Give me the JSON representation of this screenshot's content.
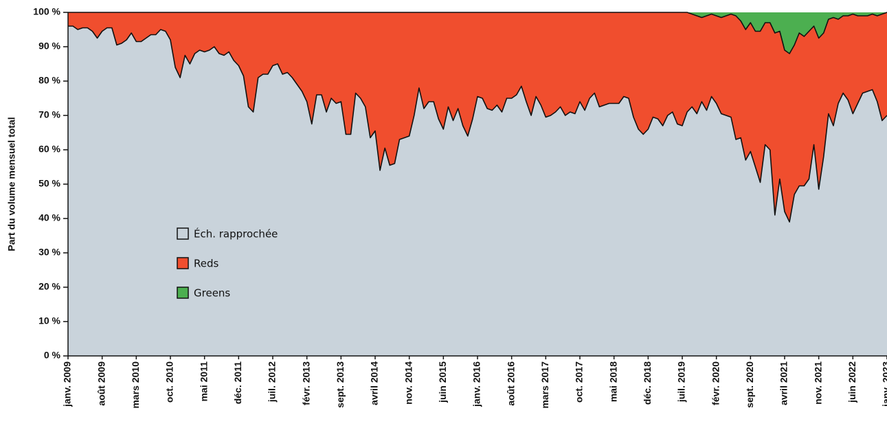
{
  "chart_data": {
    "type": "stacked_area",
    "ylabel": "Part du volume mensuel total",
    "categories": [
      "janv. 2009",
      null,
      null,
      null,
      null,
      null,
      null,
      "août 2009",
      null,
      null,
      null,
      null,
      null,
      null,
      "mars 2010",
      null,
      null,
      null,
      null,
      null,
      null,
      "oct. 2010",
      null,
      null,
      null,
      null,
      null,
      null,
      "mai 2011",
      null,
      null,
      null,
      null,
      null,
      null,
      "déc. 2011",
      null,
      null,
      null,
      null,
      null,
      null,
      "juil. 2012",
      null,
      null,
      null,
      null,
      null,
      null,
      "févr. 2013",
      null,
      null,
      null,
      null,
      null,
      null,
      "sept. 2013",
      null,
      null,
      null,
      null,
      null,
      null,
      "avril 2014",
      null,
      null,
      null,
      null,
      null,
      null,
      "nov. 2014",
      null,
      null,
      null,
      null,
      null,
      null,
      "juin 2015",
      null,
      null,
      null,
      null,
      null,
      null,
      "janv. 2016",
      null,
      null,
      null,
      null,
      null,
      null,
      "août 2016",
      null,
      null,
      null,
      null,
      null,
      null,
      "mars 2017",
      null,
      null,
      null,
      null,
      null,
      null,
      "oct. 2017",
      null,
      null,
      null,
      null,
      null,
      null,
      "mai 2018",
      null,
      null,
      null,
      null,
      null,
      null,
      "déc. 2018",
      null,
      null,
      null,
      null,
      null,
      null,
      "juil. 2019",
      null,
      null,
      null,
      null,
      null,
      null,
      "févr. 2020",
      null,
      null,
      null,
      null,
      null,
      null,
      "sept. 2020",
      null,
      null,
      null,
      null,
      null,
      null,
      "avril 2021",
      null,
      null,
      null,
      null,
      null,
      null,
      "nov. 2021",
      null,
      null,
      null,
      null,
      null,
      null,
      "juin 2022",
      null,
      null,
      null,
      null,
      null,
      null,
      "janv. 2023"
    ],
    "series": [
      {
        "name": "Éch. rapprochée",
        "color": "#c9d3db",
        "values": [
          96,
          96,
          95,
          95.5,
          95.5,
          94.5,
          92.5,
          94.5,
          95.5,
          95.5,
          90.5,
          91,
          92,
          94,
          91.5,
          91.5,
          92.5,
          93.5,
          93.5,
          95,
          94.5,
          92,
          84,
          81,
          87.5,
          85,
          88,
          89,
          88.5,
          89,
          90,
          88,
          87.5,
          88.5,
          86,
          84.5,
          81.5,
          72.5,
          71,
          81,
          82,
          82,
          84.5,
          85,
          82,
          82.5,
          81,
          79,
          77,
          74,
          67.5,
          76,
          76,
          71,
          75,
          73.5,
          74,
          64.5,
          64.5,
          76.5,
          75,
          72.5,
          63.5,
          65.5,
          54,
          60.5,
          55.5,
          56,
          63,
          63.5,
          64,
          70,
          78,
          72,
          74,
          74,
          69,
          66,
          72.5,
          68.5,
          72,
          67,
          64,
          69,
          75.5,
          75,
          72,
          71.5,
          73,
          71,
          75,
          75,
          76,
          78.5,
          74,
          70,
          75.5,
          73,
          69.5,
          70,
          71,
          72.5,
          70,
          71,
          70.5,
          74,
          71.5,
          75,
          76.5,
          72.5,
          73,
          73.5,
          73.5,
          73.5,
          75.5,
          75,
          69.5,
          66,
          64.5,
          66,
          69.5,
          69,
          67,
          70,
          71,
          67.5,
          67,
          71,
          72.5,
          70.5,
          74,
          71.5,
          75.5,
          73.5,
          70.5,
          70,
          69.5,
          63,
          63.5,
          57,
          59.5,
          55,
          50.5,
          61.5,
          60,
          41,
          51.5,
          42,
          39,
          47,
          49.5,
          49.5,
          51.5,
          61.5,
          48.5,
          58,
          70.5,
          67,
          73.5,
          76.5,
          74.5,
          70.5,
          73.5,
          76.5,
          77,
          77.5,
          74,
          68.5,
          70
        ]
      },
      {
        "name": "Reds",
        "color": "#f04e2e",
        "values": [
          4,
          4,
          5,
          4.5,
          4.5,
          5.5,
          7.5,
          5.5,
          4.5,
          4.5,
          9.5,
          9,
          8,
          6,
          8.5,
          8.5,
          7.5,
          6.5,
          6.5,
          5,
          5.5,
          8,
          16,
          19,
          12.5,
          15,
          12,
          11,
          11.5,
          11,
          10,
          12,
          12.5,
          11.5,
          14,
          15.5,
          18.5,
          27.5,
          29,
          19,
          18,
          18,
          15.5,
          15,
          18,
          17.5,
          19,
          21,
          23,
          26,
          32.5,
          24,
          24,
          29,
          25,
          26.5,
          26,
          35.5,
          35.5,
          23.5,
          25,
          27.5,
          36.5,
          34.5,
          46,
          39.5,
          44.5,
          44,
          37,
          36.5,
          36,
          30,
          22,
          28,
          26,
          26,
          31,
          34,
          27.5,
          31.5,
          28,
          33,
          36,
          31,
          24.5,
          25,
          28,
          28.5,
          27,
          29,
          25,
          25,
          24,
          21.5,
          26,
          30,
          24.5,
          27,
          30.5,
          30,
          29,
          27.5,
          30,
          29,
          29.5,
          26,
          28.5,
          25,
          23.5,
          27.5,
          27,
          26.5,
          26.5,
          26.5,
          24.5,
          25,
          30.5,
          34,
          35.5,
          34,
          30.5,
          31,
          33,
          30,
          29,
          32.5,
          33,
          29,
          27,
          28.5,
          24.5,
          27.5,
          24,
          25.5,
          28,
          29,
          30,
          36,
          34,
          38,
          37.5,
          39.5,
          44,
          35.5,
          37,
          53,
          43,
          47,
          49,
          43.5,
          44.5,
          43.5,
          43,
          34.5,
          44,
          36,
          27.5,
          31.5,
          24.5,
          22.5,
          24.5,
          29,
          25.5,
          22.5,
          22,
          22,
          25,
          31,
          30
        ]
      },
      {
        "name": "Greens",
        "color": "#4caf50",
        "values": [
          0,
          0,
          0,
          0,
          0,
          0,
          0,
          0,
          0,
          0,
          0,
          0,
          0,
          0,
          0,
          0,
          0,
          0,
          0,
          0,
          0,
          0,
          0,
          0,
          0,
          0,
          0,
          0,
          0,
          0,
          0,
          0,
          0,
          0,
          0,
          0,
          0,
          0,
          0,
          0,
          0,
          0,
          0,
          0,
          0,
          0,
          0,
          0,
          0,
          0,
          0,
          0,
          0,
          0,
          0,
          0,
          0,
          0,
          0,
          0,
          0,
          0,
          0,
          0,
          0,
          0,
          0,
          0,
          0,
          0,
          0,
          0,
          0,
          0,
          0,
          0,
          0,
          0,
          0,
          0,
          0,
          0,
          0,
          0,
          0,
          0,
          0,
          0,
          0,
          0,
          0,
          0,
          0,
          0,
          0,
          0,
          0,
          0,
          0,
          0,
          0,
          0,
          0,
          0,
          0,
          0,
          0,
          0,
          0,
          0,
          0,
          0,
          0,
          0,
          0,
          0,
          0,
          0,
          0,
          0,
          0,
          0,
          0,
          0,
          0,
          0,
          0,
          0,
          0.5,
          1,
          1.5,
          1,
          0.5,
          1,
          1.5,
          1,
          0.5,
          1,
          2.5,
          5,
          3,
          5.5,
          5.5,
          3,
          3,
          6,
          5.5,
          11,
          12,
          9.5,
          6,
          7,
          5.5,
          4,
          7.5,
          6,
          2,
          1.5,
          2,
          1,
          1,
          0.5,
          1,
          1,
          1,
          0.5,
          1,
          0.5,
          0
        ]
      }
    ],
    "ylim": [
      0,
      100
    ],
    "yticks": [
      {
        "value": 0,
        "label": "0 %"
      },
      {
        "value": 10,
        "label": "10 %"
      },
      {
        "value": 20,
        "label": "20 %"
      },
      {
        "value": 30,
        "label": "30 %"
      },
      {
        "value": 40,
        "label": "40 %"
      },
      {
        "value": 50,
        "label": "50 %"
      },
      {
        "value": 60,
        "label": "60 %"
      },
      {
        "value": 70,
        "label": "70 %"
      },
      {
        "value": 80,
        "label": "80 %"
      },
      {
        "value": 90,
        "label": "90 %"
      },
      {
        "value": 100,
        "label": "100 %"
      }
    ]
  }
}
